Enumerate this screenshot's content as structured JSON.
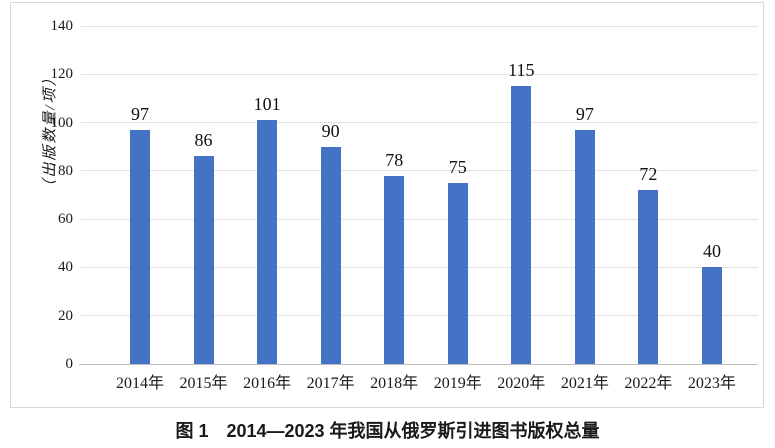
{
  "figure": {
    "caption": "图 1　2014—2023 年我国从俄罗斯引进图书版权总量"
  },
  "chart_data": {
    "type": "bar",
    "title": "",
    "categories": [
      "2014年",
      "2015年",
      "2016年",
      "2017年",
      "2018年",
      "2019年",
      "2020年",
      "2021年",
      "2022年",
      "2023年"
    ],
    "values": [
      97,
      86,
      101,
      90,
      78,
      75,
      115,
      97,
      72,
      40
    ],
    "xlabel": "",
    "ylabel": "（出版数量/项）",
    "ylim": [
      0,
      140
    ],
    "yticks": [
      0,
      20,
      40,
      60,
      80,
      100,
      120,
      140
    ],
    "grid": true,
    "legend": false,
    "data_labels": true,
    "colors": {
      "bar": "#4472c4",
      "gridline": "#e2e2e2",
      "axis_line": "#bfbfbf",
      "frame_border": "#d9d9d9",
      "text": "#1a1a1a"
    }
  }
}
